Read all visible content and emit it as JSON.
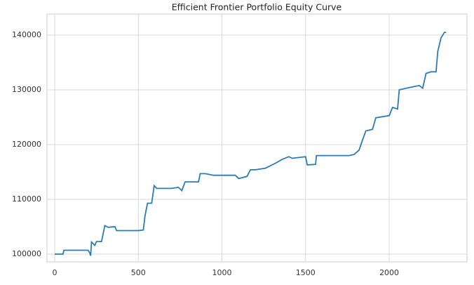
{
  "chart_data": {
    "type": "line",
    "title": "Efficient Frontier Portfolio Equity Curve",
    "x": [
      0,
      50,
      55,
      200,
      210,
      215,
      220,
      240,
      250,
      280,
      300,
      320,
      360,
      370,
      500,
      530,
      540,
      555,
      580,
      595,
      610,
      700,
      740,
      760,
      780,
      860,
      870,
      900,
      950,
      1080,
      1100,
      1150,
      1170,
      1200,
      1260,
      1320,
      1360,
      1400,
      1420,
      1500,
      1510,
      1560,
      1565,
      1760,
      1790,
      1820,
      1840,
      1860,
      1900,
      1920,
      2000,
      2020,
      2050,
      2060,
      2100,
      2180,
      2200,
      2220,
      2250,
      2280,
      2290,
      2310,
      2330,
      2340
    ],
    "values": [
      100000,
      100000,
      100700,
      100700,
      100200,
      99700,
      102200,
      101600,
      102300,
      102300,
      105200,
      104900,
      105000,
      104300,
      104300,
      104400,
      107000,
      109300,
      109300,
      112500,
      112000,
      112000,
      112200,
      111600,
      113200,
      113200,
      114700,
      114700,
      114400,
      114400,
      113800,
      114200,
      115400,
      115400,
      115700,
      116600,
      117300,
      117800,
      117500,
      117800,
      116300,
      116400,
      118000,
      118000,
      118200,
      119000,
      120800,
      122500,
      122800,
      124900,
      125300,
      126800,
      126500,
      130000,
      130300,
      130800,
      130300,
      133000,
      133300,
      133300,
      137000,
      139500,
      140500,
      140500
    ],
    "color": "#2b7bb9",
    "xlim": [
      -46,
      2465
    ],
    "ylim": [
      98590,
      143850
    ],
    "xticks": [
      0,
      500,
      1000,
      1500,
      2000
    ],
    "yticks": [
      100000,
      110000,
      120000,
      130000,
      140000
    ],
    "grid": true
  }
}
